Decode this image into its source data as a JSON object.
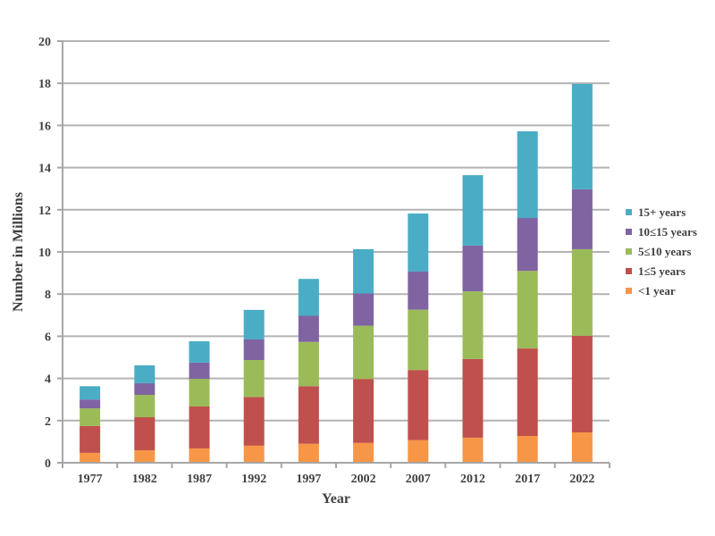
{
  "chart_data": {
    "type": "bar",
    "stacked": true,
    "title": "",
    "xlabel": "Year",
    "ylabel": "Number in Millions",
    "ylim": [
      0,
      20
    ],
    "yticks": [
      0,
      2,
      4,
      6,
      8,
      10,
      12,
      14,
      16,
      18,
      20
    ],
    "grid": true,
    "legend_position": "right",
    "categories": [
      "1977",
      "1982",
      "1987",
      "1992",
      "1997",
      "2002",
      "2007",
      "2012",
      "2017",
      "2022"
    ],
    "series": [
      {
        "name": "<1 year",
        "color": "#f79646",
        "values": [
          0.47,
          0.59,
          0.68,
          0.81,
          0.9,
          0.94,
          1.07,
          1.19,
          1.27,
          1.44
        ]
      },
      {
        "name": "1≤5 years",
        "color": "#c0504d",
        "values": [
          1.27,
          1.57,
          1.99,
          2.31,
          2.73,
          3.03,
          3.33,
          3.73,
          4.15,
          4.58
        ]
      },
      {
        "name": "5≤10 years",
        "color": "#9bbb59",
        "values": [
          0.84,
          1.06,
          1.31,
          1.75,
          2.1,
          2.53,
          2.86,
          3.21,
          3.68,
          4.11
        ]
      },
      {
        "name": "10≤15 years",
        "color": "#8064a2",
        "values": [
          0.42,
          0.55,
          0.77,
          0.98,
          1.24,
          1.53,
          1.81,
          2.17,
          2.51,
          2.84
        ]
      },
      {
        "name": "15+ years",
        "color": "#4bacc6",
        "values": [
          0.63,
          0.85,
          1.01,
          1.4,
          1.75,
          2.1,
          2.75,
          3.34,
          4.11,
          5.0
        ]
      }
    ],
    "legend_order": [
      "15+ years",
      "10≤15 years",
      "5≤10 years",
      "1≤5 years",
      "<1 year"
    ]
  }
}
